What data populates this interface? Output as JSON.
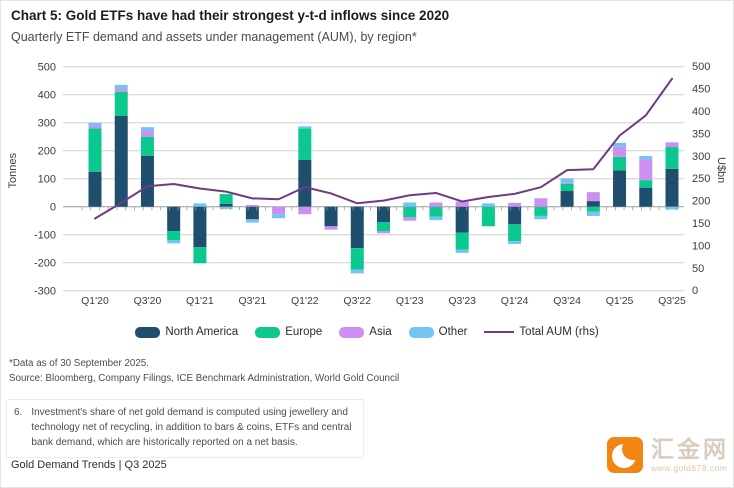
{
  "header": {
    "title": "Chart 5: Gold ETFs have had their strongest y-t-d inflows since 2020",
    "subtitle": "Quarterly ETF demand and assets under management (AUM), by region*"
  },
  "chart_data": {
    "type": "stacked-bar+line",
    "categories": [
      "Q1'20",
      "Q2'20",
      "Q3'20",
      "Q4'20",
      "Q1'21",
      "Q2'21",
      "Q3'21",
      "Q4'21",
      "Q1'22",
      "Q2'22",
      "Q3'22",
      "Q4'22",
      "Q1'23",
      "Q2'23",
      "Q3'23",
      "Q4'23",
      "Q1'24",
      "Q2'24",
      "Q3'24",
      "Q4'24",
      "Q1'25",
      "Q2'25",
      "Q3'25"
    ],
    "x_labels_shown": [
      "Q1'20",
      "Q3'20",
      "Q1'21",
      "Q3'21",
      "Q1'22",
      "Q3'22",
      "Q1'23",
      "Q3'23",
      "Q1'24",
      "Q3'24",
      "Q1'25",
      "Q3'25"
    ],
    "series": [
      {
        "name": "North America",
        "values": [
          125,
          325,
          182,
          -87,
          -145,
          10,
          -45,
          0,
          167,
          -70,
          -148,
          -55,
          0,
          0,
          -93,
          0,
          -63,
          0,
          56,
          20,
          130,
          68,
          135
        ]
      },
      {
        "name": "Europe",
        "values": [
          155,
          85,
          68,
          -32,
          -57,
          35,
          0,
          0,
          112,
          0,
          -77,
          -33,
          -38,
          -36,
          -60,
          -70,
          -60,
          -33,
          26,
          -18,
          48,
          27,
          78
        ]
      },
      {
        "name": "Asia",
        "values": [
          8,
          10,
          20,
          0,
          0,
          0,
          6,
          -27,
          -27,
          -12,
          0,
          -7,
          -12,
          15,
          18,
          0,
          14,
          30,
          4,
          32,
          36,
          74,
          17
        ]
      },
      {
        "name": "Other",
        "values": [
          12,
          15,
          14,
          -12,
          12,
          -8,
          -12,
          -14,
          8,
          0,
          -13,
          0,
          15,
          -12,
          -12,
          12,
          -10,
          -12,
          15,
          -15,
          14,
          12,
          -10
        ]
      }
    ],
    "line": {
      "name": "Total AUM (rhs)",
      "values": [
        160,
        195,
        232,
        237,
        227,
        220,
        205,
        203,
        230,
        216,
        194,
        200,
        212,
        217,
        198,
        208,
        215,
        230,
        268,
        270,
        345,
        390,
        472
      ]
    },
    "left_axis": {
      "label": "Tonnes",
      "min": -300,
      "max": 500,
      "step": 100,
      "ticks": [
        500,
        400,
        300,
        200,
        100,
        0,
        -100,
        -200,
        -300
      ]
    },
    "right_axis": {
      "label": "U$bn",
      "min": 0,
      "max": 500,
      "step": 50,
      "ticks": [
        500,
        450,
        400,
        350,
        300,
        250,
        200,
        150,
        100,
        50,
        0
      ]
    },
    "colors": {
      "North America": "#1f4e6e",
      "Europe": "#0bc98e",
      "Asia": "#ce8ff2",
      "Other": "#74c3f2",
      "line": "#6e3c85",
      "grid": "#cfcfcf",
      "zero_axis": "#9b9b9b"
    },
    "legend_position": "bottom",
    "grid": true
  },
  "footnotes": [
    "*Data as of 30 September 2025.",
    "Source: Bloomberg, Company Filings, ICE Benchmark Administration, World Gold Council"
  ],
  "note": {
    "number": "6.",
    "text": "Investment's share of net gold demand is computed using jewellery and technology net of recycling, in addition to bars & coins, ETFs and central bank demand, which are historically reported on a net basis."
  },
  "footer": {
    "label": "Gold Demand Trends | Q3 2025"
  },
  "logo": {
    "brand": "汇金网",
    "url": "www.gold678.com"
  }
}
